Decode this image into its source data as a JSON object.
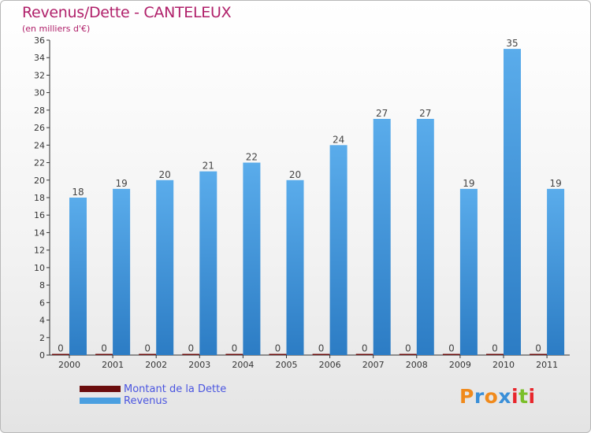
{
  "header": {
    "title": "Revenus/Dette - CANTELEUX",
    "subtitle": "(en milliers d'€)"
  },
  "colors": {
    "title": "#b0206a",
    "dette": "#6b0d0d",
    "revenus": "#4a9fe0",
    "legend_text": "#4a55e0"
  },
  "chart_data": {
    "type": "bar",
    "title": "Revenus/Dette - CANTELEUX",
    "subtitle": "(en milliers d'€)",
    "categories": [
      "2000",
      "2001",
      "2002",
      "2003",
      "2004",
      "2005",
      "2006",
      "2007",
      "2008",
      "2009",
      "2010",
      "2011"
    ],
    "series": [
      {
        "name": "Montant de la Dette",
        "values": [
          0,
          0,
          0,
          0,
          0,
          0,
          0,
          0,
          0,
          0,
          0,
          0
        ],
        "color": "#6b0d0d"
      },
      {
        "name": "Revenus",
        "values": [
          18,
          19,
          20,
          21,
          22,
          20,
          24,
          27,
          27,
          19,
          35,
          19
        ],
        "color": "#4a9fe0"
      }
    ],
    "ylim": [
      0,
      36
    ],
    "yticks": [
      0,
      2,
      4,
      6,
      8,
      10,
      12,
      14,
      16,
      18,
      20,
      22,
      24,
      26,
      28,
      30,
      32,
      34,
      36
    ],
    "grid": false,
    "legend_position": "bottom-left"
  },
  "legend": {
    "items": [
      {
        "label": "Montant de la Dette",
        "color": "#6b0d0d"
      },
      {
        "label": "Revenus",
        "color": "#4a9fe0"
      }
    ]
  },
  "logo": {
    "letters": [
      "P",
      "r",
      "o",
      "x",
      "i",
      "t",
      "i"
    ],
    "colors": [
      "#f08a1c",
      "#3a8fd8",
      "#f08a1c",
      "#3a8fd8",
      "#e8262c",
      "#7bbf2a",
      "#e8262c"
    ]
  }
}
